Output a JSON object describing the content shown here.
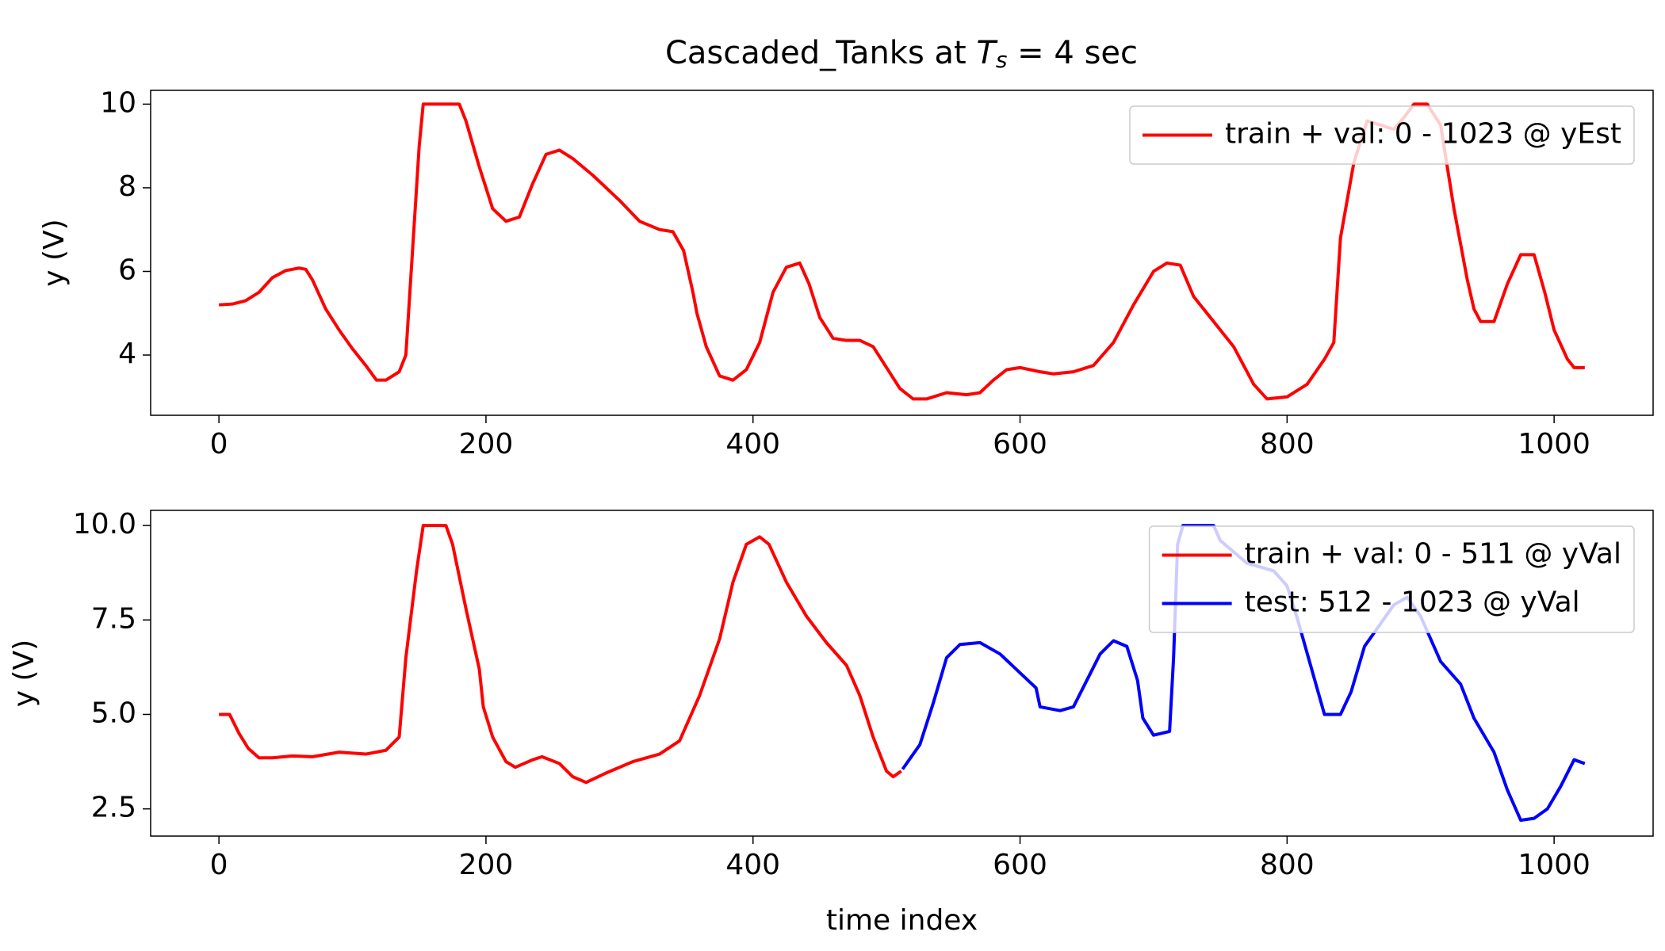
{
  "chart_data": [
    {
      "type": "line",
      "title": "Cascaded_Tanks at ",
      "title_symbol": "T",
      "title_subscript": "s",
      "title_suffix": " =  4 sec",
      "ylabel": "y (V)",
      "legend": "upper right",
      "xlim": [
        -51.15,
        1074.15
      ],
      "ylim": [
        2.56,
        10.33
      ],
      "xticks": [
        0,
        200,
        400,
        600,
        800,
        1000
      ],
      "yticks": [
        4,
        6,
        8,
        10
      ],
      "series": [
        {
          "name": "train + val: 0 - 1023 @ yEst",
          "color": "#ff0000",
          "x": [
            0,
            10,
            20,
            30,
            40,
            50,
            60,
            65,
            70,
            80,
            90,
            100,
            110,
            118,
            125,
            135,
            140,
            145,
            150,
            153,
            170,
            180,
            185,
            195,
            205,
            215,
            225,
            235,
            245,
            255,
            265,
            280,
            300,
            315,
            330,
            340,
            348,
            355,
            358,
            365,
            375,
            385,
            395,
            405,
            415,
            425,
            435,
            442,
            450,
            460,
            470,
            480,
            490,
            500,
            510,
            520,
            530,
            545,
            560,
            570,
            580,
            590,
            600,
            615,
            625,
            640,
            655,
            670,
            685,
            700,
            710,
            720,
            730,
            745,
            760,
            775,
            785,
            800,
            815,
            828,
            835,
            840,
            850,
            860,
            870,
            880,
            888,
            895,
            905,
            915,
            925,
            935,
            940,
            945,
            955,
            965,
            975,
            985,
            993,
            1000,
            1010,
            1015,
            1023
          ],
          "values": [
            5.2,
            5.22,
            5.3,
            5.5,
            5.85,
            6.02,
            6.08,
            6.05,
            5.8,
            5.1,
            4.6,
            4.15,
            3.75,
            3.4,
            3.4,
            3.6,
            4.0,
            6.5,
            9.0,
            10,
            10,
            10,
            9.6,
            8.5,
            7.5,
            7.2,
            7.3,
            8.1,
            8.8,
            8.9,
            8.7,
            8.3,
            7.7,
            7.2,
            7.0,
            6.95,
            6.5,
            5.5,
            5.0,
            4.2,
            3.5,
            3.4,
            3.65,
            4.3,
            5.5,
            6.1,
            6.2,
            5.7,
            4.9,
            4.4,
            4.35,
            4.35,
            4.2,
            3.7,
            3.2,
            2.95,
            2.95,
            3.1,
            3.05,
            3.1,
            3.4,
            3.65,
            3.7,
            3.6,
            3.55,
            3.6,
            3.75,
            4.3,
            5.2,
            6.0,
            6.2,
            6.15,
            5.4,
            4.8,
            4.2,
            3.3,
            2.95,
            3.0,
            3.3,
            3.9,
            4.3,
            6.8,
            8.6,
            9.6,
            9.5,
            9.4,
            9.7,
            10,
            10,
            9.5,
            7.5,
            5.8,
            5.1,
            4.8,
            4.8,
            5.7,
            6.4,
            6.4,
            5.5,
            4.6,
            3.9,
            3.7,
            3.7
          ]
        }
      ]
    },
    {
      "type": "line",
      "ylabel": "y (V)",
      "xlabel": "time index",
      "legend": "upper right",
      "xlim": [
        -51.15,
        1074.15
      ],
      "ylim": [
        1.78,
        10.4
      ],
      "xticks": [
        0,
        200,
        400,
        600,
        800,
        1000
      ],
      "yticks": [
        {
          "value": 10,
          "label": "10.0"
        },
        7.5,
        {
          "value": 5,
          "label": "5.0"
        },
        2.5
      ],
      "series": [
        {
          "name": "train + val: 0 - 511 @ yVal",
          "color": "#ff0000",
          "x": [
            0,
            8,
            15,
            22,
            30,
            40,
            55,
            70,
            90,
            110,
            125,
            135,
            140,
            148,
            153,
            170,
            175,
            185,
            195,
            198,
            205,
            215,
            222,
            235,
            242,
            255,
            265,
            275,
            290,
            310,
            330,
            345,
            360,
            375,
            385,
            395,
            405,
            412,
            425,
            440,
            455,
            470,
            480,
            490,
            500,
            505,
            511
          ],
          "values": [
            5.0,
            5.0,
            4.5,
            4.1,
            3.85,
            3.85,
            3.9,
            3.88,
            4.0,
            3.95,
            4.05,
            4.4,
            6.5,
            8.8,
            10,
            10,
            9.5,
            7.8,
            6.2,
            5.2,
            4.4,
            3.75,
            3.6,
            3.8,
            3.88,
            3.7,
            3.35,
            3.2,
            3.45,
            3.75,
            3.95,
            4.3,
            5.5,
            7.0,
            8.5,
            9.5,
            9.7,
            9.5,
            8.5,
            7.6,
            6.9,
            6.3,
            5.5,
            4.4,
            3.5,
            3.35,
            3.5
          ]
        },
        {
          "name": "test: 512 - 1023 @ yVal",
          "color": "#0000ff",
          "x": [
            512,
            525,
            535,
            545,
            555,
            570,
            585,
            600,
            612,
            615,
            630,
            640,
            650,
            660,
            670,
            680,
            688,
            692,
            700,
            712,
            715,
            718,
            722,
            745,
            750,
            770,
            790,
            800,
            808,
            820,
            828,
            840,
            848,
            858,
            870,
            880,
            890,
            900,
            915,
            930,
            940,
            955,
            965,
            975,
            985,
            995,
            1005,
            1015,
            1023
          ],
          "values": [
            3.55,
            4.2,
            5.3,
            6.5,
            6.85,
            6.9,
            6.6,
            6.1,
            5.7,
            5.2,
            5.1,
            5.2,
            5.9,
            6.6,
            6.95,
            6.8,
            5.9,
            4.9,
            4.45,
            4.55,
            6.5,
            9.5,
            10,
            10,
            9.6,
            9.0,
            8.8,
            8.4,
            7.5,
            6.0,
            5.0,
            5.0,
            5.6,
            6.8,
            7.4,
            7.9,
            8.1,
            7.6,
            6.4,
            5.8,
            4.9,
            4.0,
            3.0,
            2.2,
            2.25,
            2.5,
            3.1,
            3.8,
            3.7
          ]
        }
      ]
    }
  ]
}
